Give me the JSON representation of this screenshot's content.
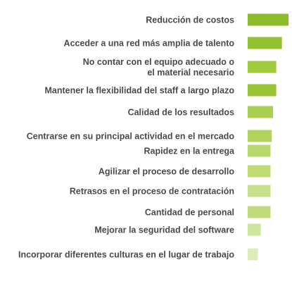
{
  "chart_data": {
    "type": "bar",
    "orientation": "horizontal",
    "title": "",
    "xlabel": "",
    "ylabel": "",
    "grid": false,
    "legend": "none",
    "xlim": [
      0,
      100
    ],
    "categories": [
      [
        "Reducción de costos"
      ],
      [
        "Acceder a una red más amplia de talento"
      ],
      [
        "No contar con el equipo adecuado o",
        "el material necesario"
      ],
      [
        "Mantener la flexibilidad del staff a largo plazo"
      ],
      [
        "Calidad de los resultados"
      ],
      [
        "Centrarse en su principal actividad en el mercado"
      ],
      [
        "Rapidez en la entrega"
      ],
      [
        "Agilizar el proceso de desarrollo"
      ],
      [
        "Retrasos en el proceso de contratación"
      ],
      [
        "Cantidad de personal"
      ],
      [
        "Mejorar la seguridad del software"
      ],
      [
        "Incorporar diferentes culturas en el lugar de trabajo"
      ]
    ],
    "values": [
      100,
      84,
      70,
      70,
      62,
      59,
      56,
      56,
      56,
      56,
      32,
      25
    ],
    "colors": [
      "#8bbd2a",
      "#93c230",
      "#9fc93e",
      "#98c536",
      "#a9cf4f",
      "#b0d35b",
      "#b9d86c",
      "#bedb74",
      "#c7e08a",
      "#bfdb79",
      "#cfe59c",
      "#dcedb9"
    ]
  }
}
